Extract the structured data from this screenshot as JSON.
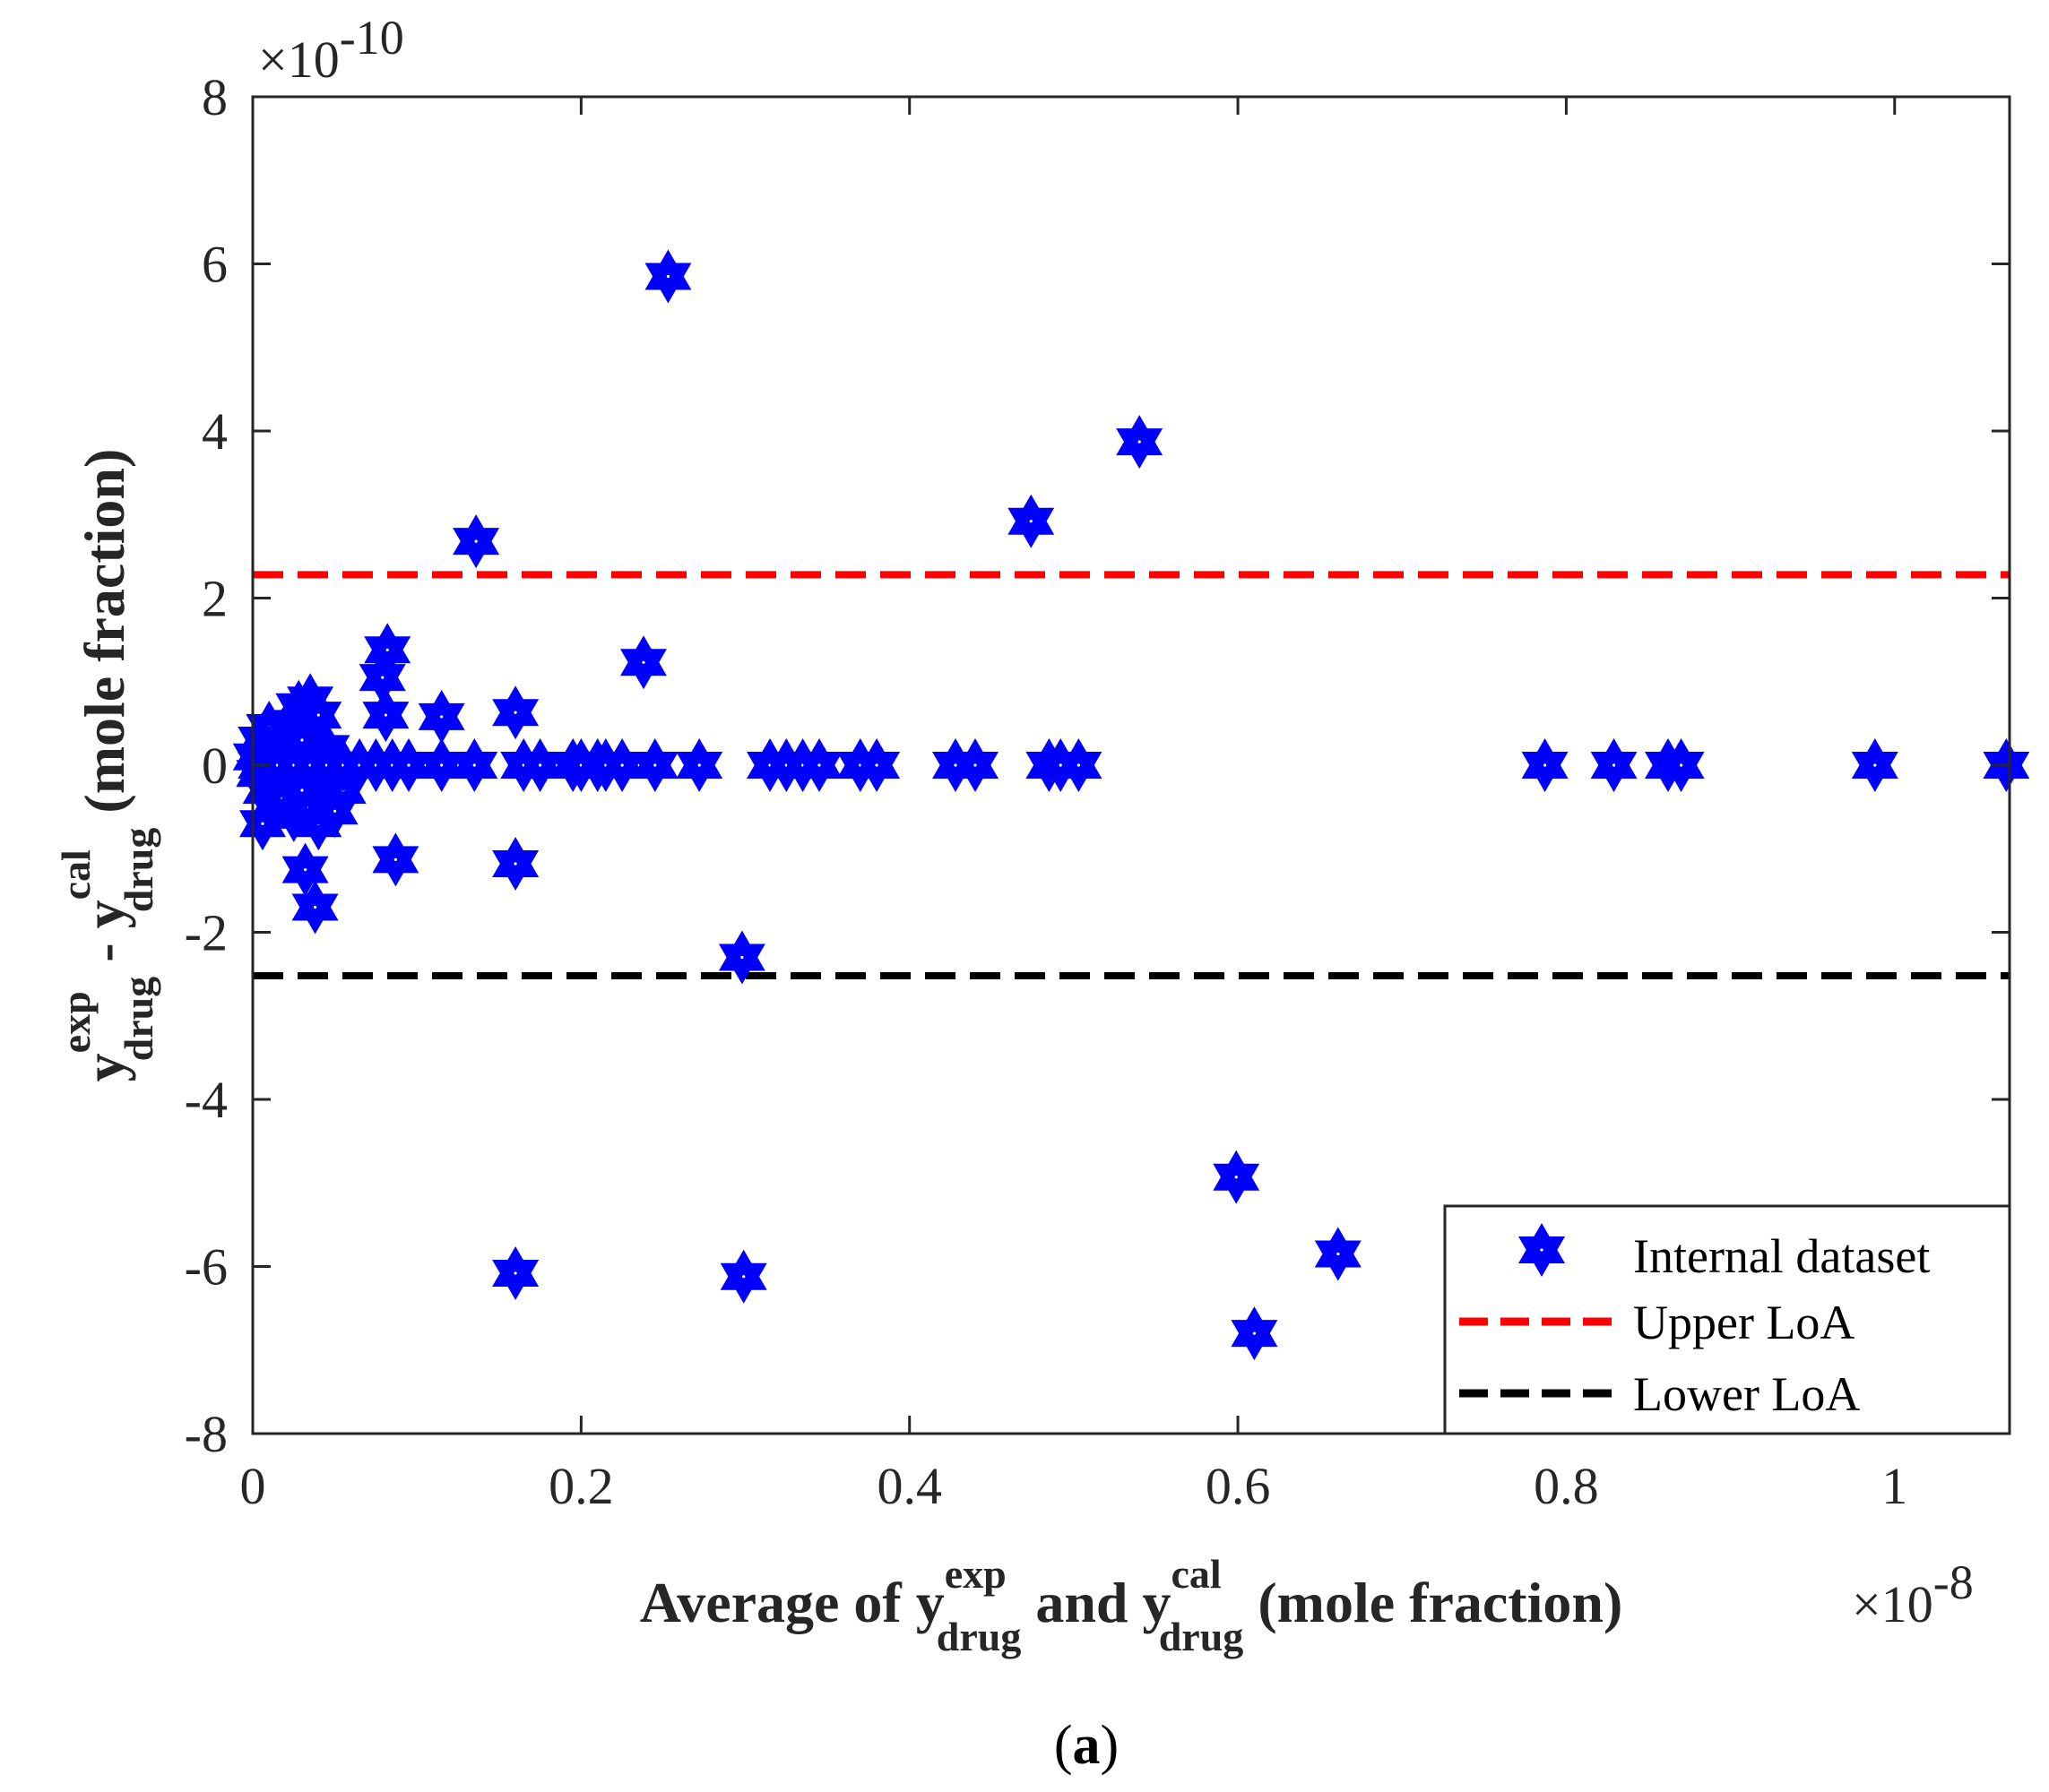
{
  "chart_data": {
    "type": "scatter",
    "title": "",
    "caption": {
      "open": "(",
      "letter": "a",
      "close": ")"
    },
    "xlabel": {
      "prefix": "Average of ",
      "y1": "y",
      "y1_sup": "exp",
      "y1_sub": "drug",
      "middle": " and ",
      "y2": "y",
      "y2_sup": "cal",
      "y2_sub": "drug",
      "suffix": " (mole fraction)"
    },
    "ylabel": {
      "y1": "y",
      "y1_sup": "exp",
      "y1_sub": "drug",
      "minus": " - ",
      "y2": "y",
      "y2_sup": "cal",
      "y2_sub": "drug",
      "suffix": " (mole fraction)"
    },
    "x_multiplier": {
      "base": "×10",
      "exponent": "-8"
    },
    "y_multiplier": {
      "base": "×10",
      "exponent": "-10"
    },
    "xlim": [
      0,
      1.07
    ],
    "ylim": [
      -8,
      8
    ],
    "xticks": [
      0,
      0.2,
      0.4,
      0.6,
      0.8,
      1
    ],
    "xtick_labels": [
      "0",
      "0.2",
      "0.4",
      "0.6",
      "0.8",
      "1"
    ],
    "yticks": [
      -8,
      -6,
      -4,
      -2,
      0,
      2,
      4,
      6,
      8
    ],
    "ytick_labels": [
      "-8",
      "-6",
      "-4",
      "-2",
      "0",
      "2",
      "4",
      "6",
      "8"
    ],
    "grid": false,
    "legend_position": "bottom-right",
    "series": [
      {
        "name": "Internal dataset",
        "kind": "scatter",
        "marker": "hexagram",
        "color": "#0000ff",
        "points": [
          [
            0.253,
            5.85
          ],
          [
            0.54,
            3.87
          ],
          [
            0.474,
            2.92
          ],
          [
            0.136,
            2.68
          ],
          [
            0.238,
            1.23
          ],
          [
            0.082,
            1.38
          ],
          [
            0.079,
            1.05
          ],
          [
            0.081,
            0.6
          ],
          [
            0.115,
            0.58
          ],
          [
            0.16,
            0.63
          ],
          [
            0.035,
            0.78
          ],
          [
            0.028,
            0.7
          ],
          [
            0.04,
            0.6
          ],
          [
            0.025,
            0.5
          ],
          [
            0.022,
            0.42
          ],
          [
            0.01,
            0.45
          ],
          [
            0.005,
            0.3
          ],
          [
            0.015,
            0.25
          ],
          [
            0.03,
            0.3
          ],
          [
            0.045,
            0.2
          ],
          [
            0.002,
            0.1
          ],
          [
            0.004,
            -0.1
          ],
          [
            0.008,
            -0.3
          ],
          [
            0.012,
            -0.5
          ],
          [
            0.006,
            -0.7
          ],
          [
            0.018,
            -0.4
          ],
          [
            0.025,
            -0.6
          ],
          [
            0.033,
            -0.5
          ],
          [
            0.04,
            -0.7
          ],
          [
            0.05,
            -0.55
          ],
          [
            0.03,
            -0.3
          ],
          [
            0.045,
            -0.2
          ],
          [
            0.055,
            -0.3
          ],
          [
            0.087,
            -1.13
          ],
          [
            0.16,
            -1.18
          ],
          [
            0.032,
            -1.25
          ],
          [
            0.038,
            -1.7
          ],
          [
            0.298,
            -2.3
          ],
          [
            0.16,
            -6.08
          ],
          [
            0.299,
            -6.12
          ],
          [
            0.599,
            -4.93
          ],
          [
            0.661,
            -5.85
          ],
          [
            0.61,
            -6.8
          ],
          [
            0.005,
            0
          ],
          [
            0.015,
            0
          ],
          [
            0.025,
            0
          ],
          [
            0.035,
            0
          ],
          [
            0.045,
            0
          ],
          [
            0.055,
            0
          ],
          [
            0.065,
            0
          ],
          [
            0.075,
            0
          ],
          [
            0.085,
            0
          ],
          [
            0.095,
            0
          ],
          [
            0.115,
            0
          ],
          [
            0.135,
            0
          ],
          [
            0.165,
            0
          ],
          [
            0.175,
            0
          ],
          [
            0.195,
            0
          ],
          [
            0.2,
            0
          ],
          [
            0.21,
            0
          ],
          [
            0.215,
            0
          ],
          [
            0.225,
            0
          ],
          [
            0.245,
            0
          ],
          [
            0.272,
            0
          ],
          [
            0.315,
            0
          ],
          [
            0.325,
            0
          ],
          [
            0.335,
            0
          ],
          [
            0.345,
            0
          ],
          [
            0.37,
            0
          ],
          [
            0.38,
            0
          ],
          [
            0.428,
            0
          ],
          [
            0.44,
            0
          ],
          [
            0.485,
            0
          ],
          [
            0.492,
            0
          ],
          [
            0.503,
            0
          ],
          [
            0.787,
            0
          ],
          [
            0.829,
            0
          ],
          [
            0.862,
            0
          ],
          [
            0.87,
            0
          ],
          [
            0.988,
            0
          ],
          [
            1.068,
            0
          ]
        ]
      },
      {
        "name": "Upper LoA",
        "kind": "hline",
        "y": 2.28,
        "color": "#ff0000",
        "dash": true
      },
      {
        "name": "Lower LoA",
        "kind": "hline",
        "y": -2.52,
        "color": "#000000",
        "dash": true
      }
    ]
  }
}
